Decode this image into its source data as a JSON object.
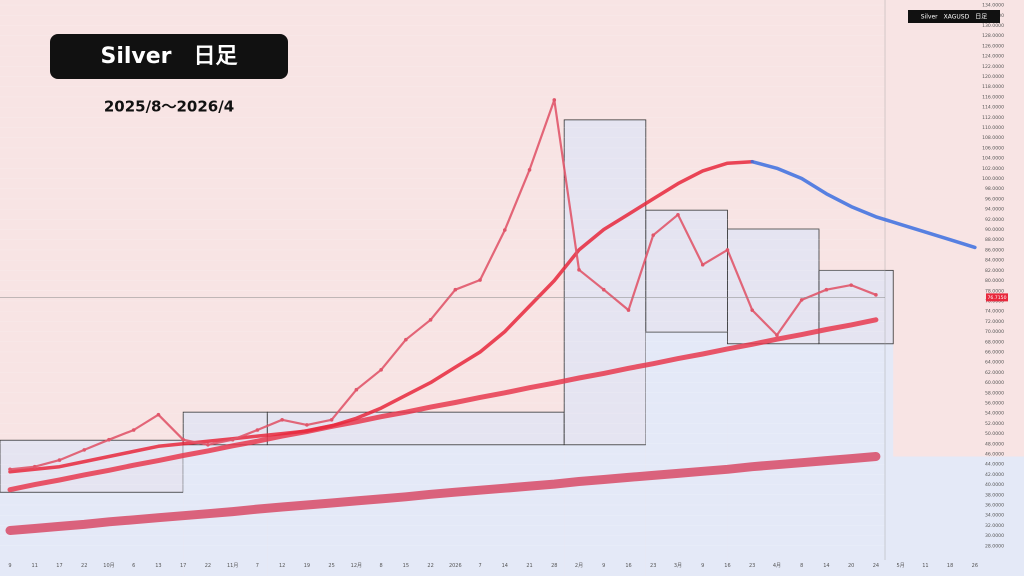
{
  "chart_data": {
    "type": "line",
    "title": "Silver　日足",
    "subtitle": "2025/8〜2026/4",
    "header": "Silver　XAGUSD　日足",
    "categories": [
      "9",
      "11",
      "17",
      "22",
      "10月",
      "6",
      "13",
      "17",
      "22",
      "11月",
      "7",
      "12",
      "19",
      "25",
      "12月",
      "8",
      "15",
      "22",
      "2026",
      "7",
      "14",
      "21",
      "28",
      "2月",
      "9",
      "16",
      "23",
      "3月",
      "9",
      "16",
      "23",
      "4月",
      "8",
      "14",
      "20",
      "24",
      "5月",
      "11",
      "18",
      "26"
    ],
    "ylim": [
      26,
      135
    ],
    "yticks": [
      {
        "value": 28,
        "label": "28.0000"
      },
      {
        "value": 30,
        "label": "30.0000"
      },
      {
        "value": 32,
        "label": "32.0000"
      },
      {
        "value": 34,
        "label": "34.0000"
      },
      {
        "value": 36,
        "label": "36.0000"
      },
      {
        "value": 38,
        "label": "38.0000"
      },
      {
        "value": 40,
        "label": "40.0000"
      },
      {
        "value": 42,
        "label": "42.0000"
      },
      {
        "value": 44,
        "label": "44.0000"
      },
      {
        "value": 46,
        "label": "46.0000"
      },
      {
        "value": 48,
        "label": "48.0000"
      },
      {
        "value": 50,
        "label": "50.0000"
      },
      {
        "value": 52,
        "label": "52.0000"
      },
      {
        "value": 54,
        "label": "54.0000"
      },
      {
        "value": 56,
        "label": "56.0000"
      },
      {
        "value": 58,
        "label": "58.0000"
      },
      {
        "value": 60,
        "label": "60.0000"
      },
      {
        "value": 62,
        "label": "62.0000"
      },
      {
        "value": 64,
        "label": "64.0000"
      },
      {
        "value": 66,
        "label": "66.0000"
      },
      {
        "value": 68,
        "label": "68.0000"
      },
      {
        "value": 70,
        "label": "70.0000"
      },
      {
        "value": 72,
        "label": "72.0000"
      },
      {
        "value": 74,
        "label": "74.0000"
      },
      {
        "value": 76,
        "label": "76.0000"
      },
      {
        "value": 78,
        "label": "78.0000"
      },
      {
        "value": 80,
        "label": "80.0000"
      },
      {
        "value": 82,
        "label": "82.0000"
      },
      {
        "value": 84,
        "label": "84.0000"
      },
      {
        "value": 86,
        "label": "86.0000"
      },
      {
        "value": 88,
        "label": "88.0000"
      },
      {
        "value": 90,
        "label": "90.0000"
      },
      {
        "value": 92,
        "label": "92.0000"
      },
      {
        "value": 94,
        "label": "94.0000"
      },
      {
        "value": 96,
        "label": "96.0000"
      },
      {
        "value": 98,
        "label": "98.0000"
      },
      {
        "value": 100,
        "label": "100.0000"
      },
      {
        "value": 102,
        "label": "102.0000"
      },
      {
        "value": 104,
        "label": "104.0000"
      },
      {
        "value": 106,
        "label": "106.0000"
      },
      {
        "value": 108,
        "label": "108.0000"
      },
      {
        "value": 110,
        "label": "110.0000"
      },
      {
        "value": 112,
        "label": "112.0000"
      },
      {
        "value": 114,
        "label": "114.0000"
      },
      {
        "value": 116,
        "label": "116.0000"
      },
      {
        "value": 118,
        "label": "118.0000"
      },
      {
        "value": 120,
        "label": "120.0000"
      },
      {
        "value": 122,
        "label": "122.0000"
      },
      {
        "value": 124,
        "label": "124.0000"
      },
      {
        "value": 126,
        "label": "126.0000"
      },
      {
        "value": 128,
        "label": "128.0000"
      },
      {
        "value": 130,
        "label": "130.0000"
      },
      {
        "value": 132,
        "label": "132.0000"
      },
      {
        "value": 134,
        "label": "134.0000"
      }
    ],
    "series": [
      {
        "color": "#e0566a",
        "width": 2.2,
        "values": [
          43,
          43.5,
          44.8,
          46.8,
          48.8,
          50.7,
          53.7,
          48.8,
          47.8,
          48.8,
          50.7,
          52.7,
          51.7,
          52.7,
          58.6,
          62.5,
          68.4,
          72.3,
          78.2,
          80.1,
          89.9,
          101.7,
          115.4,
          82.1,
          78.2,
          74.2,
          88.9,
          92.9,
          83.1,
          86,
          74.2,
          69.3,
          76.2,
          78.2,
          79.1,
          77.2,
          null,
          null,
          null,
          null
        ]
      },
      {
        "color": "#e8283c",
        "width": 3.5,
        "values": [
          42.5,
          43,
          43.5,
          44.5,
          45.5,
          46.5,
          47.5,
          48,
          48.5,
          49,
          49.5,
          50,
          50.5,
          51.5,
          53,
          55,
          57.5,
          60,
          63,
          66,
          70,
          75,
          80,
          86,
          90,
          93,
          96,
          99,
          101.5,
          103,
          103.3,
          null,
          null,
          null,
          null,
          null,
          null,
          null,
          null,
          null
        ]
      },
      {
        "color": "#3b6fe0",
        "width": 3.5,
        "values": [
          null,
          null,
          null,
          null,
          null,
          null,
          null,
          null,
          null,
          null,
          null,
          null,
          null,
          null,
          null,
          null,
          null,
          null,
          null,
          null,
          null,
          null,
          null,
          null,
          null,
          null,
          null,
          null,
          null,
          null,
          103.3,
          102,
          100,
          97,
          94.5,
          92.5,
          91,
          89.5,
          88,
          86.5
        ]
      },
      {
        "color": "#e8394f",
        "width": 5,
        "values": [
          39,
          40,
          40.9,
          41.9,
          42.8,
          43.8,
          44.7,
          45.7,
          46.6,
          47.6,
          48.5,
          49.5,
          50.4,
          51.4,
          52.3,
          53.3,
          54.2,
          55.2,
          56.1,
          57.1,
          58,
          59,
          59.9,
          60.9,
          61.8,
          62.8,
          63.7,
          64.7,
          65.6,
          66.6,
          67.5,
          68.5,
          69.4,
          70.4,
          71.3,
          72.3,
          null,
          null,
          null,
          null
        ]
      },
      {
        "color": "#d84a66",
        "width": 9,
        "values": [
          31,
          31.4,
          31.8,
          32.2,
          32.7,
          33.1,
          33.5,
          33.9,
          34.3,
          34.7,
          35.2,
          35.6,
          36,
          36.4,
          36.8,
          37.2,
          37.6,
          38.1,
          38.5,
          38.9,
          39.3,
          39.7,
          40.1,
          40.6,
          41,
          41.4,
          41.8,
          42.2,
          42.6,
          43,
          43.5,
          43.9,
          44.3,
          44.7,
          45.1,
          45.5,
          null,
          null,
          null,
          null
        ]
      }
    ],
    "boxes": [
      {
        "from": 0,
        "to": 7,
        "top": 48.7,
        "bottom": 38.5
      },
      {
        "from": 7,
        "to": 10.4,
        "top": 54.2,
        "bottom": 47.8
      },
      {
        "from": 10.4,
        "to": 22.4,
        "top": 54.2,
        "bottom": 47.8
      },
      {
        "from": 22.4,
        "to": 25.7,
        "top": 111.5,
        "bottom": 47.8
      },
      {
        "from": 25.7,
        "to": 29,
        "top": 93.8,
        "bottom": 69.9
      },
      {
        "from": 29,
        "to": 32.7,
        "top": 90.1,
        "bottom": 67.6
      },
      {
        "from": 32.7,
        "to": 35.7,
        "top": 82,
        "bottom": 67.6
      }
    ],
    "last_price": {
      "value": 76.7,
      "label": "76.7150"
    }
  }
}
